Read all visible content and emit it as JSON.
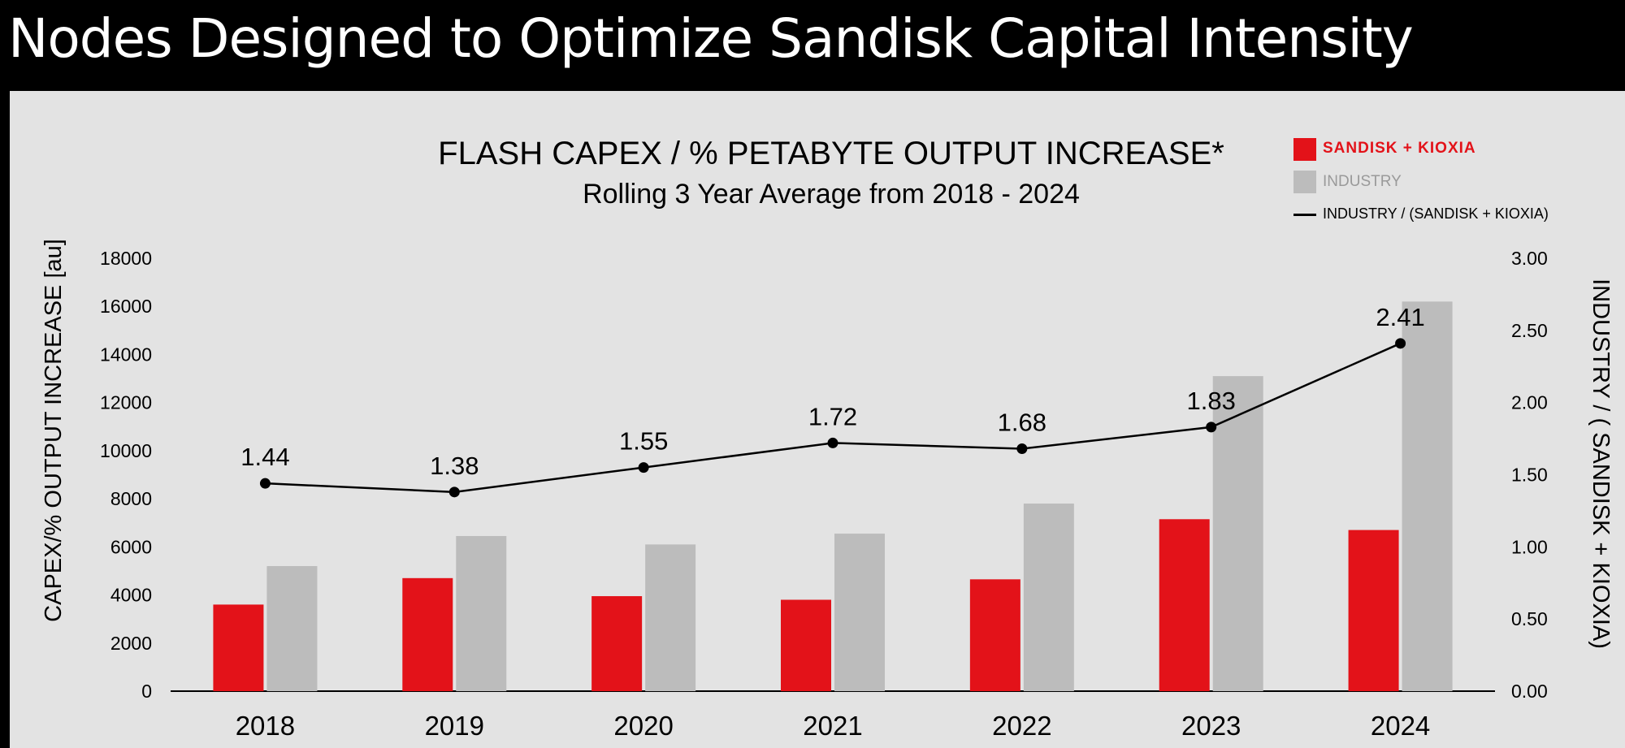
{
  "page": {
    "title": "Nodes Designed to Optimize Sandisk Capital Intensity"
  },
  "legend": {
    "sandisk_label": "SANDISK + KIOXIA",
    "industry_label": "INDUSTRY",
    "ratio_label": "INDUSTRY / (SANDISK + KIOXIA)"
  },
  "colors": {
    "sandisk": "#e31219",
    "industry": "#bcbcbc",
    "ratio_line": "#000000",
    "background": "#e3e3e3",
    "header": "#000000"
  },
  "chart_data": {
    "type": "bar",
    "title": "FLASH CAPEX / % PETABYTE OUTPUT INCREASE*",
    "subtitle": "Rolling 3 Year Average from 2018 - 2024",
    "ylabel": "CAPEX/% OUTPUT INCREASE [au]",
    "y2label": "INDUSTRY / ( SANDISK + KIOXIA)",
    "categories": [
      "2018",
      "2019",
      "2020",
      "2021",
      "2022",
      "2023",
      "2024"
    ],
    "ylim": [
      0,
      18000
    ],
    "yticks": [
      "0",
      "2000",
      "4000",
      "6000",
      "8000",
      "10000",
      "12000",
      "14000",
      "16000",
      "18000"
    ],
    "y2lim": [
      0,
      3
    ],
    "y2ticks": [
      "0.00",
      "0.50",
      "1.00",
      "1.50",
      "2.00",
      "2.50",
      "3.00"
    ],
    "series": [
      {
        "name": "SANDISK + KIOXIA",
        "type": "bar",
        "axis": "left",
        "values": [
          3600,
          4700,
          3950,
          3800,
          4650,
          7150,
          6700
        ]
      },
      {
        "name": "INDUSTRY",
        "type": "bar",
        "axis": "left",
        "values": [
          5200,
          6450,
          6100,
          6550,
          7800,
          13100,
          16200
        ]
      },
      {
        "name": "INDUSTRY / (SANDISK + KIOXIA)",
        "type": "line",
        "axis": "right",
        "values": [
          1.44,
          1.38,
          1.55,
          1.72,
          1.68,
          1.83,
          2.41
        ],
        "labels": [
          "1.44",
          "1.38",
          "1.55",
          "1.72",
          "1.68",
          "1.83",
          "2.41"
        ]
      }
    ],
    "grid": false,
    "legend_position": "top-right"
  }
}
